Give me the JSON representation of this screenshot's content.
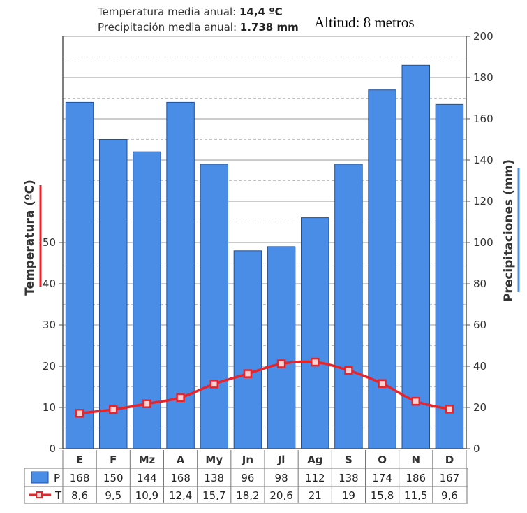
{
  "header": {
    "temp_label": "Temperatura media anual:",
    "temp_value": "14,4 ºC",
    "precip_label": "Precipitación media anual:",
    "precip_value": "1.738 mm",
    "altitude": "Altitud: 8 metros"
  },
  "chart_data": {
    "type": "bar",
    "categories": [
      "E",
      "F",
      "Mz",
      "A",
      "My",
      "Jn",
      "Jl",
      "Ag",
      "S",
      "O",
      "N",
      "D"
    ],
    "series": [
      {
        "name": "P",
        "chart": "bar",
        "axis": "right",
        "values": [
          168,
          150,
          144,
          168,
          138,
          96,
          98,
          112,
          138,
          174,
          186,
          167
        ],
        "labels": [
          "168",
          "150",
          "144",
          "168",
          "138",
          "96",
          "98",
          "112",
          "138",
          "174",
          "186",
          "167"
        ],
        "color": "#4a8de6"
      },
      {
        "name": "T",
        "chart": "line",
        "axis": "left",
        "values": [
          8.6,
          9.5,
          10.9,
          12.4,
          15.7,
          18.2,
          20.6,
          21,
          19,
          15.8,
          11.5,
          9.6
        ],
        "labels": [
          "8,6",
          "9,5",
          "10,9",
          "12,4",
          "15,7",
          "18,2",
          "20,6",
          "21",
          "19",
          "15,8",
          "11,5",
          "9,6"
        ],
        "color": "#e8242a"
      }
    ],
    "y_left": {
      "label": "Temperatura (ºC)",
      "ticks": [
        0,
        10,
        20,
        30,
        40,
        50
      ],
      "ylim": [
        0,
        100
      ]
    },
    "y_right": {
      "label": "Precipitaciones (mm)",
      "ticks": [
        0,
        20,
        40,
        60,
        80,
        100,
        120,
        140,
        160,
        180,
        200
      ],
      "ylim": [
        0,
        200
      ]
    },
    "grid": true,
    "legend": "table-bottom",
    "colors": {
      "bar": "#4a8de6",
      "line": "#e8242a",
      "marker_fill": "#ffd0d0"
    }
  }
}
